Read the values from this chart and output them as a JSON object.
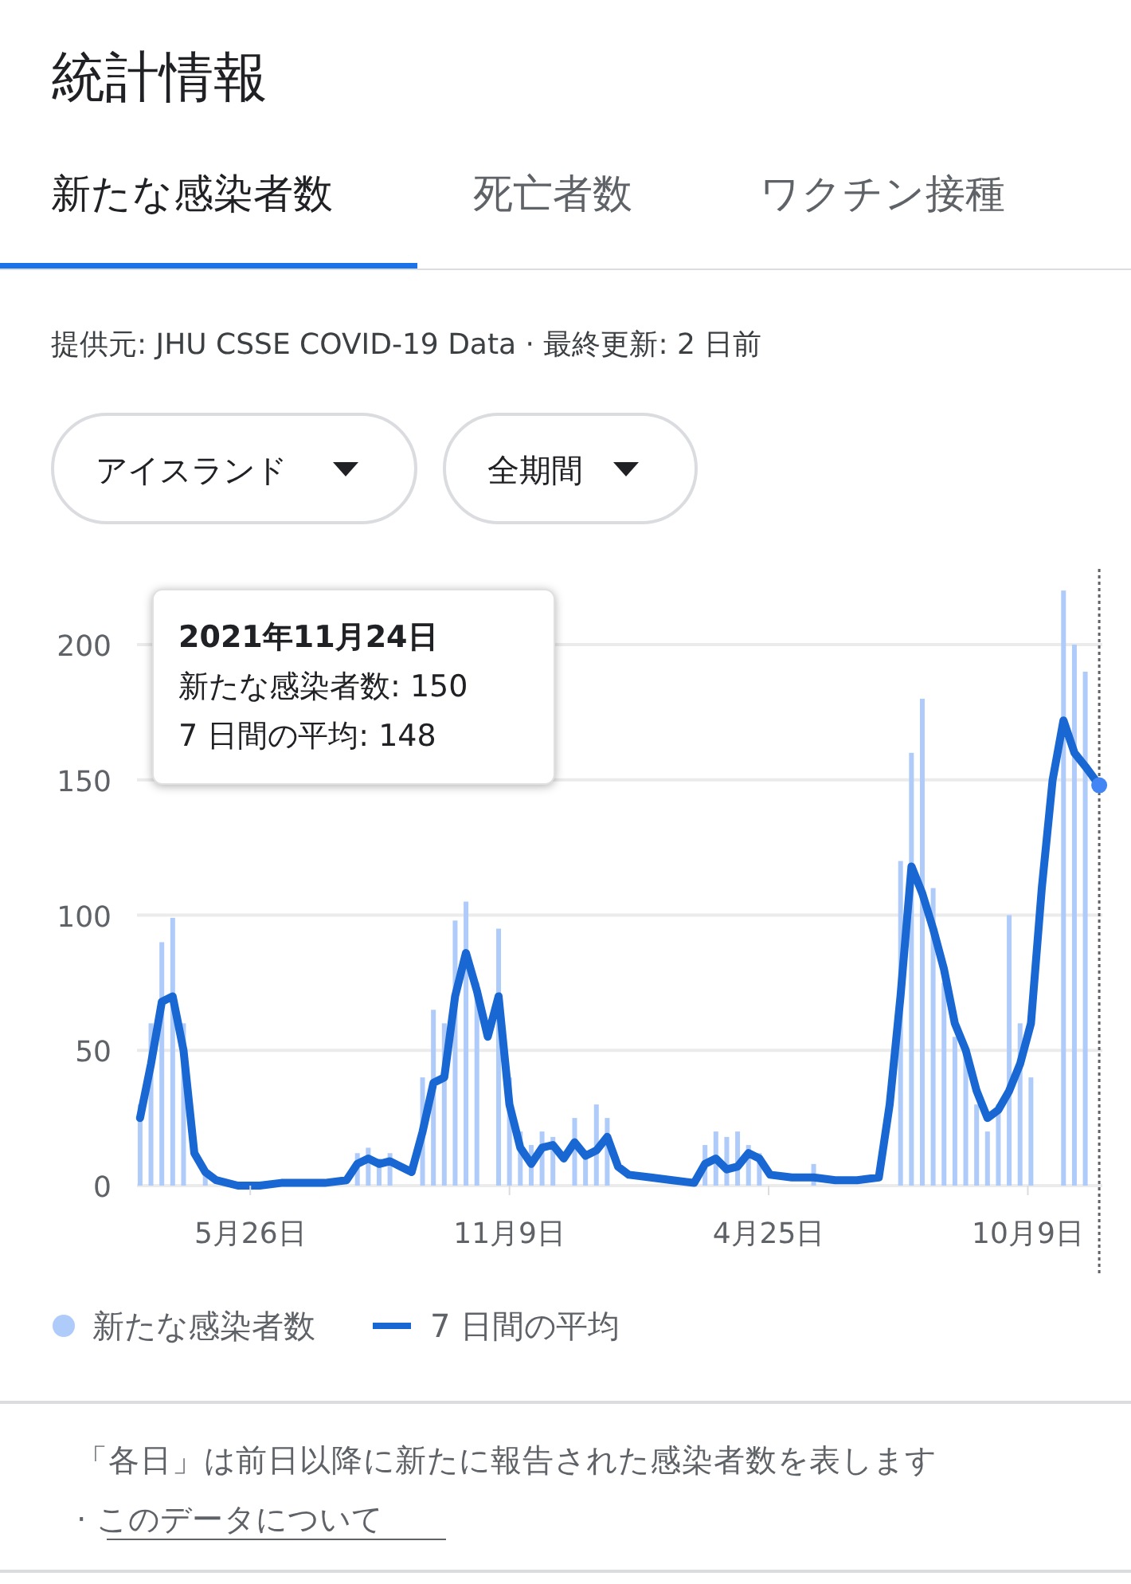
{
  "chart_data": {
    "type": "bar",
    "title": "統計情報",
    "annotations": [
      "新たな感染者数",
      "死亡者数",
      "ワクチン接種",
      "提供元: JHU CSSE COVID-19 Data · 最終更新: 2 日前",
      "アイスランド",
      "全期間",
      "2021年11月24日",
      "新たな感染者数: 150",
      "7 日間の平均: 148",
      "「各日」は前日以降に新たに報告された感染者数を表します",
      "· このデータについて"
    ],
    "x": [
      "2020-03-16",
      "2020-03-23",
      "2020-03-30",
      "2020-04-06",
      "2020-04-13",
      "2020-04-20",
      "2020-04-27",
      "2020-05-04",
      "2020-05-18",
      "2020-06-01",
      "2020-06-15",
      "2020-06-29",
      "2020-07-13",
      "2020-07-27",
      "2020-08-03",
      "2020-08-10",
      "2020-08-17",
      "2020-08-24",
      "2020-08-31",
      "2020-09-07",
      "2020-09-14",
      "2020-09-21",
      "2020-09-28",
      "2020-10-05",
      "2020-10-12",
      "2020-10-19",
      "2020-10-26",
      "2020-11-02",
      "2020-11-09",
      "2020-11-16",
      "2020-11-23",
      "2020-11-30",
      "2020-12-07",
      "2020-12-14",
      "2020-12-21",
      "2020-12-28",
      "2021-01-04",
      "2021-01-11",
      "2021-01-18",
      "2021-01-25",
      "2021-02-08",
      "2021-02-22",
      "2021-03-08",
      "2021-03-15",
      "2021-03-22",
      "2021-03-29",
      "2021-04-05",
      "2021-04-12",
      "2021-04-19",
      "2021-04-26",
      "2021-05-10",
      "2021-05-24",
      "2021-06-07",
      "2021-06-21",
      "2021-07-05",
      "2021-07-12",
      "2021-07-19",
      "2021-07-26",
      "2021-08-02",
      "2021-08-09",
      "2021-08-16",
      "2021-08-23",
      "2021-08-30",
      "2021-09-06",
      "2021-09-13",
      "2021-09-20",
      "2021-09-27",
      "2021-10-04",
      "2021-10-11",
      "2021-10-18",
      "2021-10-25",
      "2021-11-01",
      "2021-11-08",
      "2021-11-15",
      "2021-11-24"
    ],
    "series": [
      {
        "name": "新たな感染者数",
        "color": "#aecbfa",
        "values": [
          30,
          60,
          90,
          99,
          60,
          null,
          6,
          null,
          0,
          0,
          null,
          null,
          null,
          null,
          12,
          14,
          10,
          12,
          null,
          null,
          40,
          65,
          60,
          98,
          105,
          75,
          null,
          95,
          40,
          20,
          15,
          20,
          18,
          null,
          25,
          12,
          30,
          25,
          null,
          null,
          null,
          null,
          null,
          15,
          20,
          18,
          20,
          15,
          12,
          null,
          null,
          8,
          null,
          null,
          null,
          null,
          120,
          160,
          180,
          110,
          75,
          55,
          50,
          30,
          20,
          30,
          100,
          60,
          40,
          null,
          null,
          220,
          200,
          190,
          null
        ]
      },
      {
        "name": "7 日間の平均",
        "type": "line",
        "color": "#1967d2",
        "values": [
          25,
          45,
          68,
          70,
          50,
          12,
          5,
          2,
          0,
          0,
          1,
          1,
          1,
          2,
          8,
          10,
          8,
          9,
          7,
          5,
          20,
          38,
          40,
          70,
          86,
          72,
          55,
          70,
          30,
          14,
          8,
          14,
          15,
          10,
          16,
          11,
          13,
          18,
          7,
          4,
          3,
          2,
          1,
          8,
          10,
          6,
          7,
          12,
          10,
          4,
          3,
          3,
          2,
          2,
          3,
          30,
          70,
          118,
          108,
          95,
          80,
          60,
          50,
          35,
          25,
          28,
          35,
          45,
          60,
          110,
          150,
          172,
          160,
          155,
          148
        ]
      }
    ],
    "xlim": [
      "2020-03-14",
      "2021-11-26"
    ],
    "xticks": [
      {
        "value": "2020-05-26",
        "label": "5月26日"
      },
      {
        "value": "2020-11-09",
        "label": "11月9日"
      },
      {
        "value": "2021-04-25",
        "label": "4月25日"
      },
      {
        "value": "2021-10-09",
        "label": "10月9日"
      }
    ],
    "ylim": [
      0,
      228
    ],
    "yticks": [
      0,
      50,
      100,
      150,
      200
    ],
    "grid": "y",
    "legend": "bottom",
    "marker": "none",
    "line_style": "solid",
    "ref_lines": [
      {
        "axis": "x",
        "value": "2021-11-24",
        "color": "#5f6368",
        "line_style": "dotted"
      }
    ]
  }
}
